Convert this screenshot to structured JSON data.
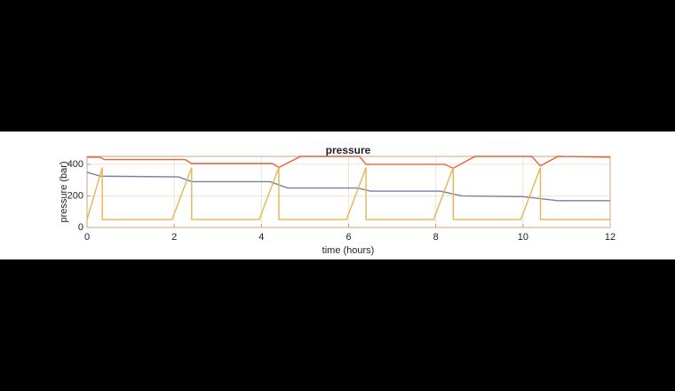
{
  "chart_data": {
    "type": "line",
    "title": "pressure",
    "xlabel": "time (hours)",
    "ylabel": "pressure (bar)",
    "xlim": [
      0,
      12
    ],
    "xticks": [
      0,
      2,
      4,
      6,
      8,
      10,
      12
    ],
    "ylim": [
      0,
      450
    ],
    "yticks": [
      0,
      200,
      400
    ],
    "grid": true,
    "series": [
      {
        "color": "#e2643c",
        "x": [
          0,
          0.3,
          0.4,
          2.25,
          2.4,
          4.25,
          4.4,
          4.9,
          6.25,
          6.4,
          8.2,
          8.4,
          8.9,
          10.2,
          10.4,
          10.8,
          12
        ],
        "values": [
          445,
          445,
          430,
          430,
          405,
          405,
          380,
          450,
          450,
          400,
          400,
          375,
          450,
          450,
          390,
          450,
          445
        ]
      },
      {
        "color": "#7480a6",
        "x": [
          0,
          0.3,
          2.1,
          2.4,
          4.2,
          4.6,
          6.2,
          6.5,
          8.1,
          8.6,
          10.0,
          10.8,
          12
        ],
        "values": [
          350,
          325,
          320,
          290,
          290,
          250,
          250,
          230,
          230,
          200,
          195,
          170,
          170
        ]
      },
      {
        "color": "#e9b450",
        "x": [
          0,
          0.35,
          0.35,
          1.95,
          2.4,
          2.4,
          3.95,
          4.4,
          4.4,
          5.95,
          6.4,
          6.4,
          7.95,
          8.4,
          8.4,
          9.95,
          10.4,
          10.4,
          12
        ],
        "values": [
          50,
          380,
          50,
          50,
          380,
          50,
          50,
          380,
          50,
          50,
          380,
          50,
          50,
          380,
          50,
          50,
          380,
          50,
          50
        ]
      }
    ]
  }
}
